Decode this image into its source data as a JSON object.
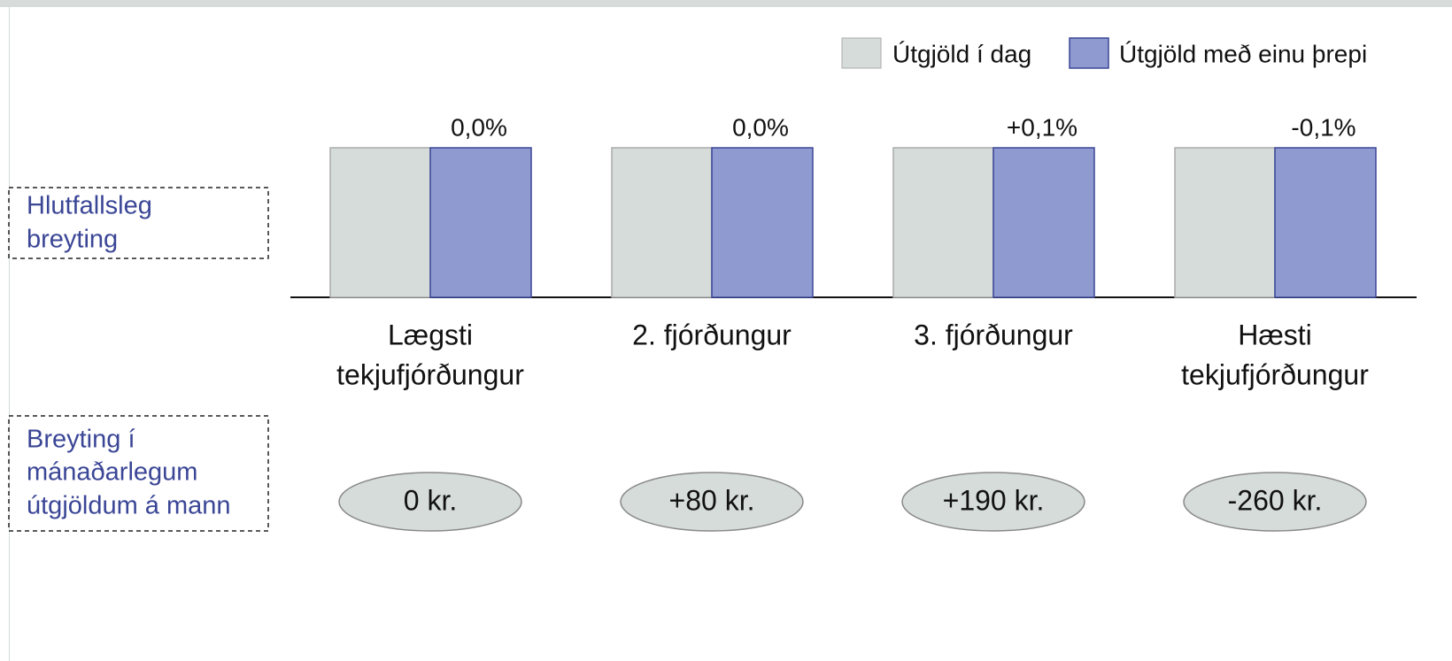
{
  "legend": [
    "Útgjöld í dag",
    "Útgjöld með einu þrepi"
  ],
  "row_labels": [
    [
      "Hlutfallsleg",
      "breyting"
    ],
    [
      "Breyting í",
      "mánaðarlegum",
      "útgjöldum á mann"
    ]
  ],
  "groups": [
    {
      "label": [
        "Lægsti",
        "tekjufjórðungur"
      ],
      "change": "0,0%",
      "amount": "0 kr."
    },
    {
      "label": [
        "2. fjórðungur"
      ],
      "change": "0,0%",
      "amount": "+80 kr."
    },
    {
      "label": [
        "3. fjórðungur"
      ],
      "change": "+0,1%",
      "amount": "+190 kr."
    },
    {
      "label": [
        "Hæsti",
        "tekjufjórðungur"
      ],
      "change": "-0,1%",
      "amount": "-260 kr."
    }
  ]
}
